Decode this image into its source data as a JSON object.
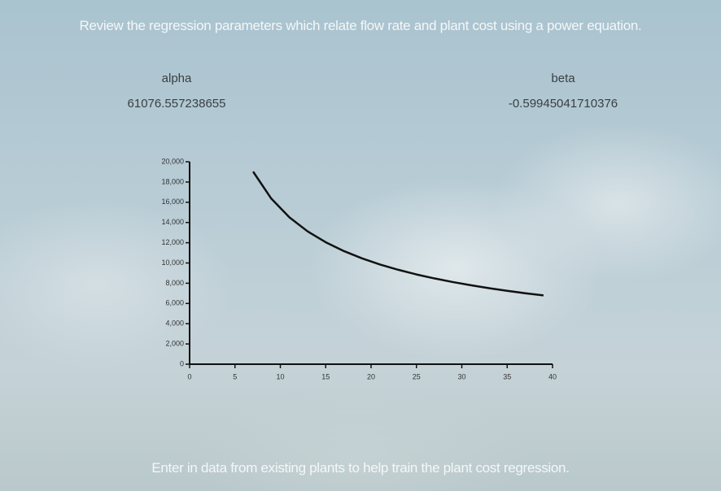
{
  "header": {
    "title": "Review the regression parameters which relate flow rate and plant cost using a power equation."
  },
  "parameters": [
    {
      "label": "alpha",
      "value": "61076.557238655"
    },
    {
      "label": "beta",
      "value": "-0.59945041710376"
    }
  ],
  "chart": {
    "type": "line",
    "x": [
      7,
      9,
      11,
      13,
      15,
      17,
      19,
      21,
      23,
      25,
      27,
      29,
      31,
      33,
      35,
      37,
      39
    ],
    "values": [
      19026,
      16363,
      14511,
      13127,
      12049,
      11177,
      10456,
      9846,
      9326,
      8868,
      8471,
      8117,
      7799,
      7512,
      7250,
      7011,
      6793
    ],
    "color": "#111111",
    "xlim": [
      0,
      40
    ],
    "ylim": [
      0,
      20000
    ],
    "xticks": [
      0,
      5,
      10,
      15,
      20,
      25,
      30,
      35,
      40
    ],
    "yticks": [
      0,
      {
        "value": 2000,
        "label": "2,000"
      },
      {
        "value": 4000,
        "label": "4,000"
      },
      {
        "value": 6000,
        "label": "6,000"
      },
      {
        "value": 8000,
        "label": "8,000"
      },
      {
        "value": 10000,
        "label": "10,000"
      },
      {
        "value": 12000,
        "label": "12,000"
      },
      {
        "value": 14000,
        "label": "14,000"
      },
      {
        "value": 16000,
        "label": "16,000"
      },
      {
        "value": 18000,
        "label": "18,000"
      },
      {
        "value": 20000,
        "label": "20,000"
      }
    ]
  },
  "footer": {
    "text": "Enter in data from existing plants to help train the plant cost regression."
  }
}
